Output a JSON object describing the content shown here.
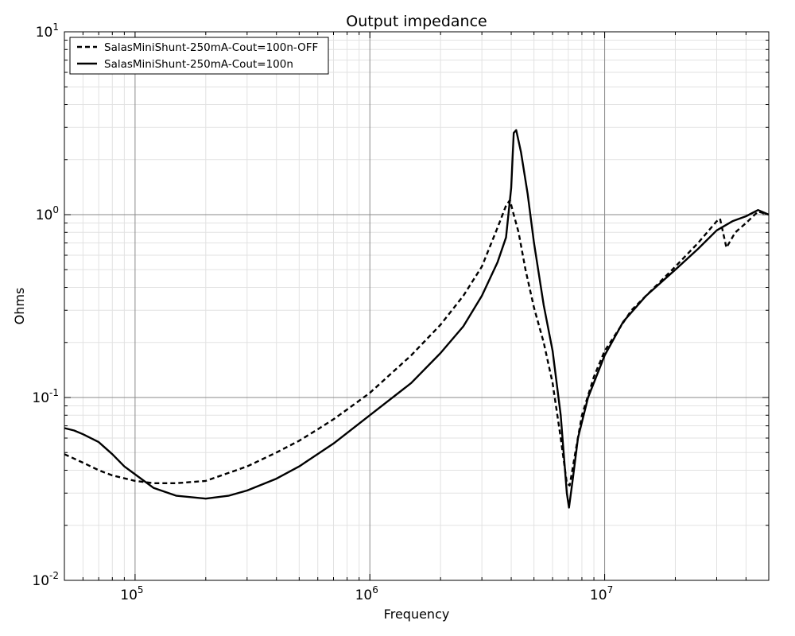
{
  "chart_data": {
    "type": "line",
    "title": "Output impedance",
    "xlabel": "Frequency",
    "ylabel": "Ohms",
    "x_scale": "log",
    "y_scale": "log",
    "xlim": [
      50000,
      50000000
    ],
    "ylim": [
      0.01,
      10
    ],
    "grid": true,
    "legend_position": "top-left",
    "x_ticks": [
      {
        "value": 100000,
        "base": "10",
        "exp": "5"
      },
      {
        "value": 1000000,
        "base": "10",
        "exp": "6"
      },
      {
        "value": 10000000,
        "base": "10",
        "exp": "7"
      }
    ],
    "y_ticks": [
      {
        "value": 0.01,
        "base": "10",
        "exp": "-2"
      },
      {
        "value": 0.1,
        "base": "10",
        "exp": "-1"
      },
      {
        "value": 1,
        "base": "10",
        "exp": "0"
      },
      {
        "value": 10,
        "base": "10",
        "exp": "1"
      }
    ],
    "series": [
      {
        "name": "SalasMiniShunt-250mA-Cout=100n-OFF",
        "style": "dashed",
        "color": "#000000",
        "points": [
          [
            50000,
            0.049
          ],
          [
            60000,
            0.044
          ],
          [
            70000,
            0.04
          ],
          [
            80000,
            0.0375
          ],
          [
            100000,
            0.035
          ],
          [
            120000,
            0.034
          ],
          [
            150000,
            0.034
          ],
          [
            200000,
            0.035
          ],
          [
            300000,
            0.042
          ],
          [
            400000,
            0.05
          ],
          [
            500000,
            0.058
          ],
          [
            600000,
            0.067
          ],
          [
            700000,
            0.076
          ],
          [
            800000,
            0.086
          ],
          [
            1000000,
            0.106
          ],
          [
            1500000,
            0.17
          ],
          [
            2000000,
            0.25
          ],
          [
            2500000,
            0.36
          ],
          [
            3000000,
            0.52
          ],
          [
            3500000,
            0.85
          ],
          [
            3800000,
            1.12
          ],
          [
            3950000,
            1.2
          ],
          [
            4100000,
            1.0
          ],
          [
            4300000,
            0.8
          ],
          [
            4600000,
            0.5
          ],
          [
            5000000,
            0.31
          ],
          [
            5500000,
            0.2
          ],
          [
            6000000,
            0.12
          ],
          [
            6500000,
            0.06
          ],
          [
            6900000,
            0.034
          ],
          [
            7100000,
            0.033
          ],
          [
            7500000,
            0.05
          ],
          [
            8000000,
            0.08
          ],
          [
            9000000,
            0.13
          ],
          [
            10000000,
            0.18
          ],
          [
            13000000,
            0.3
          ],
          [
            15000000,
            0.36
          ],
          [
            20000000,
            0.52
          ],
          [
            25000000,
            0.7
          ],
          [
            30000000,
            0.92
          ],
          [
            31000000,
            0.95
          ],
          [
            33000000,
            0.66
          ],
          [
            36000000,
            0.8
          ],
          [
            40000000,
            0.9
          ],
          [
            45000000,
            1.04
          ],
          [
            50000000,
            1.0
          ]
        ]
      },
      {
        "name": "SalasMiniShunt-250mA-Cout=100n",
        "style": "solid",
        "color": "#000000",
        "points": [
          [
            50000,
            0.068
          ],
          [
            55000,
            0.066
          ],
          [
            60000,
            0.063
          ],
          [
            70000,
            0.057
          ],
          [
            80000,
            0.049
          ],
          [
            90000,
            0.042
          ],
          [
            100000,
            0.038
          ],
          [
            120000,
            0.032
          ],
          [
            150000,
            0.029
          ],
          [
            200000,
            0.028
          ],
          [
            250000,
            0.029
          ],
          [
            300000,
            0.031
          ],
          [
            400000,
            0.036
          ],
          [
            500000,
            0.042
          ],
          [
            700000,
            0.056
          ],
          [
            1000000,
            0.08
          ],
          [
            1500000,
            0.12
          ],
          [
            2000000,
            0.175
          ],
          [
            2500000,
            0.245
          ],
          [
            3000000,
            0.36
          ],
          [
            3500000,
            0.55
          ],
          [
            3800000,
            0.75
          ],
          [
            4000000,
            1.4
          ],
          [
            4100000,
            2.8
          ],
          [
            4200000,
            2.9
          ],
          [
            4400000,
            2.2
          ],
          [
            4700000,
            1.3
          ],
          [
            5000000,
            0.7
          ],
          [
            5500000,
            0.32
          ],
          [
            6000000,
            0.18
          ],
          [
            6500000,
            0.08
          ],
          [
            6900000,
            0.03
          ],
          [
            7050000,
            0.025
          ],
          [
            7300000,
            0.035
          ],
          [
            7700000,
            0.06
          ],
          [
            8500000,
            0.1
          ],
          [
            10000000,
            0.17
          ],
          [
            12000000,
            0.26
          ],
          [
            15000000,
            0.36
          ],
          [
            20000000,
            0.5
          ],
          [
            25000000,
            0.65
          ],
          [
            30000000,
            0.82
          ],
          [
            35000000,
            0.92
          ],
          [
            40000000,
            0.98
          ],
          [
            45000000,
            1.06
          ],
          [
            50000000,
            1.0
          ]
        ]
      }
    ]
  }
}
